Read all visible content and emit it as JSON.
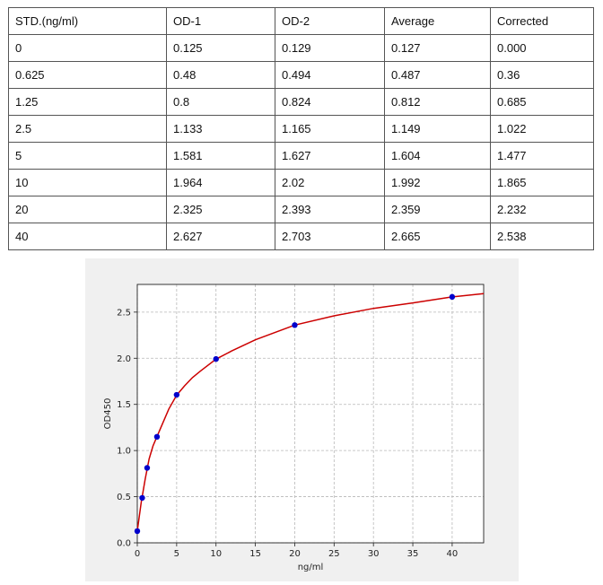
{
  "table": {
    "headers": [
      "STD.(ng/ml)",
      "OD-1",
      "OD-2",
      "Average",
      "Corrected"
    ],
    "rows": [
      [
        "0",
        "0.125",
        "0.129",
        "0.127",
        "0.000"
      ],
      [
        "0.625",
        "0.48",
        "0.494",
        "0.487",
        "0.36"
      ],
      [
        "1.25",
        "0.8",
        "0.824",
        "0.812",
        "0.685"
      ],
      [
        "2.5",
        "1.133",
        "1.165",
        "1.149",
        "1.022"
      ],
      [
        "5",
        "1.581",
        "1.627",
        "1.604",
        "1.477"
      ],
      [
        "10",
        "1.964",
        "2.02",
        "1.992",
        "1.865"
      ],
      [
        "20",
        "2.325",
        "2.393",
        "2.359",
        "2.232"
      ],
      [
        "40",
        "2.627",
        "2.703",
        "2.665",
        "2.538"
      ]
    ]
  },
  "chart_data": {
    "type": "scatter",
    "xlabel": "ng/ml",
    "ylabel": "OD450",
    "xlim": [
      0,
      44
    ],
    "ylim": [
      0,
      2.8
    ],
    "xticks": [
      0,
      5,
      10,
      15,
      20,
      25,
      30,
      35,
      40
    ],
    "yticks": [
      0.0,
      0.5,
      1.0,
      1.5,
      2.0,
      2.5
    ],
    "ytick_labels": [
      "0.0",
      "0.5",
      "1.0",
      "1.5",
      "2.0",
      "2.5"
    ],
    "grid": true,
    "points": {
      "x": [
        0,
        0.625,
        1.25,
        2.5,
        5,
        10,
        20,
        40
      ],
      "y": [
        0.127,
        0.487,
        0.812,
        1.149,
        1.604,
        1.992,
        2.359,
        2.665
      ],
      "color": "#0000cc"
    },
    "fit_curve": {
      "color": "#cc0000",
      "x": [
        0,
        0.5,
        1,
        1.5,
        2,
        2.5,
        3,
        4,
        5,
        6,
        7,
        8,
        10,
        12,
        15,
        20,
        25,
        30,
        35,
        40,
        44
      ],
      "y": [
        0.127,
        0.44,
        0.69,
        0.91,
        1.05,
        1.15,
        1.25,
        1.45,
        1.6,
        1.7,
        1.79,
        1.86,
        1.99,
        2.08,
        2.2,
        2.36,
        2.46,
        2.54,
        2.6,
        2.665,
        2.7
      ]
    }
  }
}
